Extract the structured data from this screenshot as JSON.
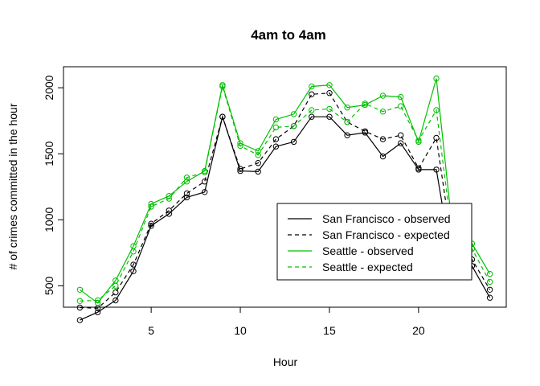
{
  "chart_data": {
    "type": "line",
    "title": "4am to 4am",
    "xlabel": "Hour",
    "ylabel": "# of crimes committed in the hour",
    "xlim": [
      0.08,
      24.92
    ],
    "ylim": [
      338,
      2159
    ],
    "xticks": [
      5,
      10,
      15,
      20
    ],
    "yticks": [
      500,
      1000,
      1500,
      2000
    ],
    "grid": false,
    "legend_position": "bottom-right",
    "x": [
      1,
      2,
      3,
      4,
      5,
      6,
      7,
      8,
      9,
      10,
      11,
      12,
      13,
      14,
      15,
      16,
      17,
      18,
      19,
      20,
      21,
      22,
      23,
      24
    ],
    "series": [
      {
        "name": "San Francisco - observed",
        "color": "#000000",
        "dash": "solid",
        "values": [
          240,
          300,
          390,
          610,
          955,
          1045,
          1170,
          1210,
          1780,
          1370,
          1365,
          1555,
          1590,
          1780,
          1780,
          1640,
          1660,
          1480,
          1580,
          1380,
          1380,
          580,
          650,
          410
        ]
      },
      {
        "name": "San Francisco - expected",
        "color": "#000000",
        "dash": "dashed",
        "values": [
          335,
          330,
          450,
          660,
          970,
          1070,
          1200,
          1290,
          1780,
          1385,
          1430,
          1610,
          1710,
          1950,
          1960,
          1740,
          1670,
          1610,
          1640,
          1390,
          1620,
          700,
          700,
          470
        ]
      },
      {
        "name": "Seattle - observed",
        "color": "#00c000",
        "dash": "solid",
        "values": [
          470,
          370,
          540,
          800,
          1120,
          1180,
          1290,
          1370,
          2020,
          1580,
          1520,
          1760,
          1800,
          2010,
          2020,
          1850,
          1870,
          1940,
          1930,
          1590,
          2070,
          800,
          820,
          590
        ]
      },
      {
        "name": "Seattle - expected",
        "color": "#00c000",
        "dash": "dashed",
        "values": [
          385,
          390,
          500,
          760,
          1100,
          1160,
          1320,
          1360,
          2010,
          1560,
          1490,
          1700,
          1710,
          1830,
          1840,
          1740,
          1880,
          1820,
          1860,
          1600,
          1830,
          760,
          780,
          530
        ]
      }
    ]
  }
}
